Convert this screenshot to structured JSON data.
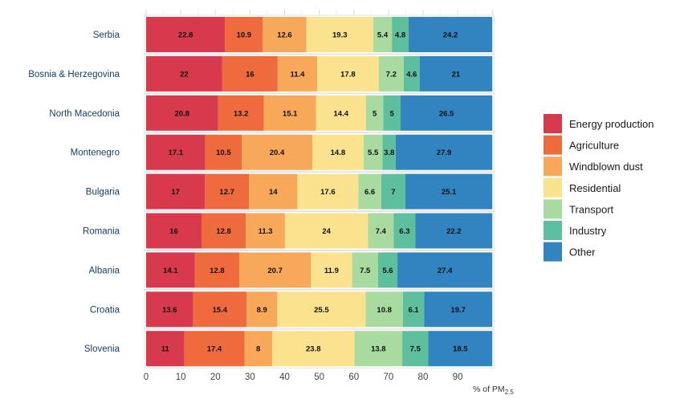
{
  "chart_data": {
    "type": "bar",
    "orientation": "horizontal",
    "stacked": true,
    "xlabel": "% of PM",
    "xlabel_subscript": "2.5",
    "xlim": [
      0,
      100
    ],
    "x_ticks": [
      0,
      10,
      20,
      30,
      40,
      50,
      60,
      70,
      80,
      90
    ],
    "grid": true,
    "legend_position": "right",
    "categories": [
      "Serbia",
      "Bosnia & Herzegovina",
      "North Macedonia",
      "Montenegro",
      "Bulgaria",
      "Romania",
      "Albania",
      "Croatia",
      "Slovenia"
    ],
    "series": [
      {
        "name": "Energy production",
        "color": "#d63a4c",
        "values": [
          22.8,
          22,
          20.8,
          17.1,
          17,
          16,
          14.1,
          13.6,
          11
        ]
      },
      {
        "name": "Agriculture",
        "color": "#ef6a3d",
        "values": [
          10.9,
          16,
          13.2,
          10.5,
          12.7,
          12.8,
          12.8,
          15.4,
          17.4
        ]
      },
      {
        "name": "Windblown dust",
        "color": "#f7a859",
        "values": [
          12.6,
          11.4,
          15.1,
          20.4,
          14,
          11.3,
          20.7,
          8.9,
          8
        ]
      },
      {
        "name": "Residential",
        "color": "#fbe28e",
        "values": [
          19.3,
          17.8,
          14.4,
          14.8,
          17.6,
          24,
          11.9,
          25.5,
          23.8
        ]
      },
      {
        "name": "Transport",
        "color": "#a9dba1",
        "values": [
          5.4,
          7.2,
          5,
          5.5,
          6.6,
          7.4,
          7.5,
          10.8,
          13.8
        ]
      },
      {
        "name": "Industry",
        "color": "#5ebf9e",
        "values": [
          4.8,
          4.6,
          5,
          3.8,
          7,
          6.3,
          5.6,
          6.1,
          7.5
        ]
      },
      {
        "name": "Other",
        "color": "#3184bf",
        "values": [
          24.2,
          21,
          26.5,
          27.9,
          25.1,
          22.2,
          27.4,
          19.7,
          18.5
        ]
      }
    ]
  }
}
